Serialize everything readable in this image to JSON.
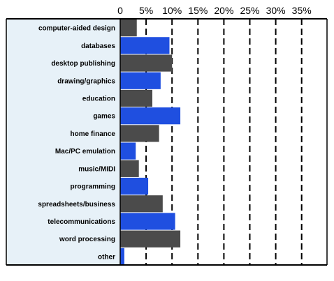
{
  "chart_data": {
    "type": "bar",
    "orientation": "horizontal",
    "title": "",
    "xlabel": "",
    "ylabel": "",
    "xlim": [
      0,
      40
    ],
    "x_ticks": [
      {
        "value": 0,
        "label": "0"
      },
      {
        "value": 5,
        "label": "5%"
      },
      {
        "value": 10,
        "label": "10%"
      },
      {
        "value": 15,
        "label": "15%"
      },
      {
        "value": 20,
        "label": "20%"
      },
      {
        "value": 25,
        "label": "25%"
      },
      {
        "value": 30,
        "label": "30%"
      },
      {
        "value": 35,
        "label": "35%"
      }
    ],
    "grid": "vertical dashed",
    "categories": [
      "computer-aided design",
      "databases",
      "desktop publishing",
      "drawing/graphics",
      "education",
      "games",
      "home finance",
      "Mac/PC emulation",
      "music/MIDI",
      "programming",
      "spreadsheets/business",
      "telecommunications",
      "word processing",
      "other"
    ],
    "series": [
      {
        "color": "#1f4fe0",
        "values": [
          null,
          9.5,
          null,
          7.8,
          null,
          11.6,
          null,
          3.0,
          null,
          5.4,
          null,
          10.6,
          null,
          0.8
        ]
      },
      {
        "color": "#4b4b4b",
        "values": [
          3.2,
          null,
          10.0,
          null,
          6.2,
          null,
          7.5,
          null,
          3.6,
          null,
          8.2,
          null,
          11.6,
          null
        ]
      }
    ],
    "colors": {
      "label_panel": "#e7f1f8",
      "axis": "#000000",
      "text": "#000000"
    }
  }
}
